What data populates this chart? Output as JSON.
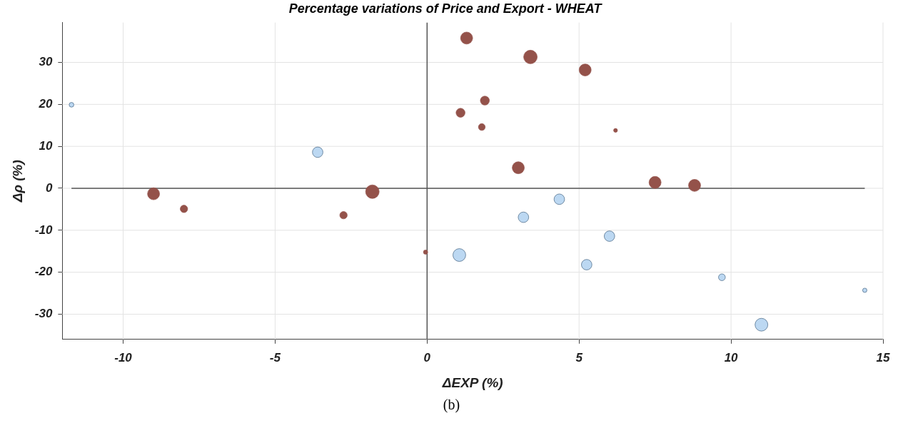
{
  "chart_data": {
    "type": "bubble",
    "title": "Percentage variations of Price and Export - WHEAT",
    "xlabel": "ΔEXP (%)",
    "ylabel": "Δρ (%)",
    "xlim": [
      -12,
      15
    ],
    "xticks": [
      -10,
      -5,
      0,
      5,
      10,
      15
    ],
    "ylim": [
      -36,
      39.5
    ],
    "yticks": [
      -30,
      -20,
      -10,
      0,
      10,
      20,
      30
    ],
    "grid": true,
    "legend": false,
    "marker": "circle",
    "annotations": [
      "(b)"
    ],
    "series": [
      {
        "color": "#94524a",
        "x": [
          1.3,
          3.4,
          5.2,
          1.9,
          1.1,
          1.8,
          6.2,
          3.0,
          7.5,
          8.8,
          -9.0,
          -8.0,
          -2.75,
          -1.8,
          -0.05
        ],
        "values": [
          35.8,
          31.3,
          28.2,
          20.9,
          18.0,
          14.6,
          13.8,
          4.9,
          1.4,
          0.7,
          -1.3,
          -4.9,
          -6.4,
          -0.8,
          -15.2
        ],
        "sizes": [
          0.79,
          1,
          0.79,
          0.44,
          0.44,
          0.25,
          0.08,
          0.79,
          0.79,
          0.79,
          0.79,
          0.3,
          0.3,
          1,
          0.1
        ]
      },
      {
        "color": "#bcd8f2",
        "x": [
          -11.7,
          -3.6,
          1.06,
          3.17,
          4.35,
          6.0,
          5.25,
          9.7,
          14.4,
          11.0
        ],
        "values": [
          19.9,
          8.6,
          -15.9,
          -6.9,
          -2.6,
          -11.4,
          -18.2,
          -21.2,
          -24.3,
          -32.5
        ],
        "sizes": [
          0.12,
          0.6,
          0.89,
          0.6,
          0.6,
          0.6,
          0.6,
          0.25,
          0.1,
          0.89
        ]
      },
      {
        "type": "line",
        "marker": "none",
        "color": "#555555",
        "x": [
          0,
          0
        ],
        "values": [
          -36,
          39.5
        ]
      },
      {
        "type": "line",
        "marker": "none",
        "color": "#555555",
        "x": [
          -11.7,
          14.4
        ],
        "values": [
          0,
          0
        ]
      }
    ]
  }
}
